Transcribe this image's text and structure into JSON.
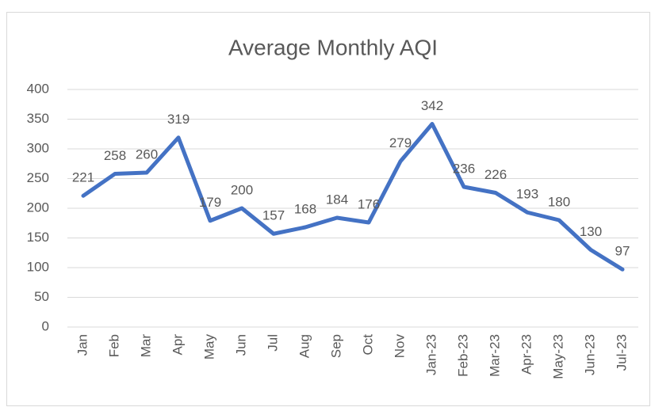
{
  "chart_data": {
    "type": "line",
    "title": "Average Monthly AQI",
    "categories": [
      "Jan",
      "Feb",
      "Mar",
      "Apr",
      "May",
      "Jun",
      "Jul",
      "Aug",
      "Sep",
      "Oct",
      "Nov",
      "Jan-23",
      "Feb-23",
      "Mar-23",
      "Apr-23",
      "May-23",
      "Jun-23",
      "Jul-23"
    ],
    "values": [
      221,
      258,
      260,
      319,
      179,
      200,
      157,
      168,
      184,
      176,
      279,
      342,
      236,
      226,
      193,
      180,
      130,
      97
    ],
    "color": "#4472c4",
    "ylim": [
      0,
      400
    ],
    "yticks": [
      0,
      50,
      100,
      150,
      200,
      250,
      300,
      350,
      400
    ],
    "grid": true
  }
}
